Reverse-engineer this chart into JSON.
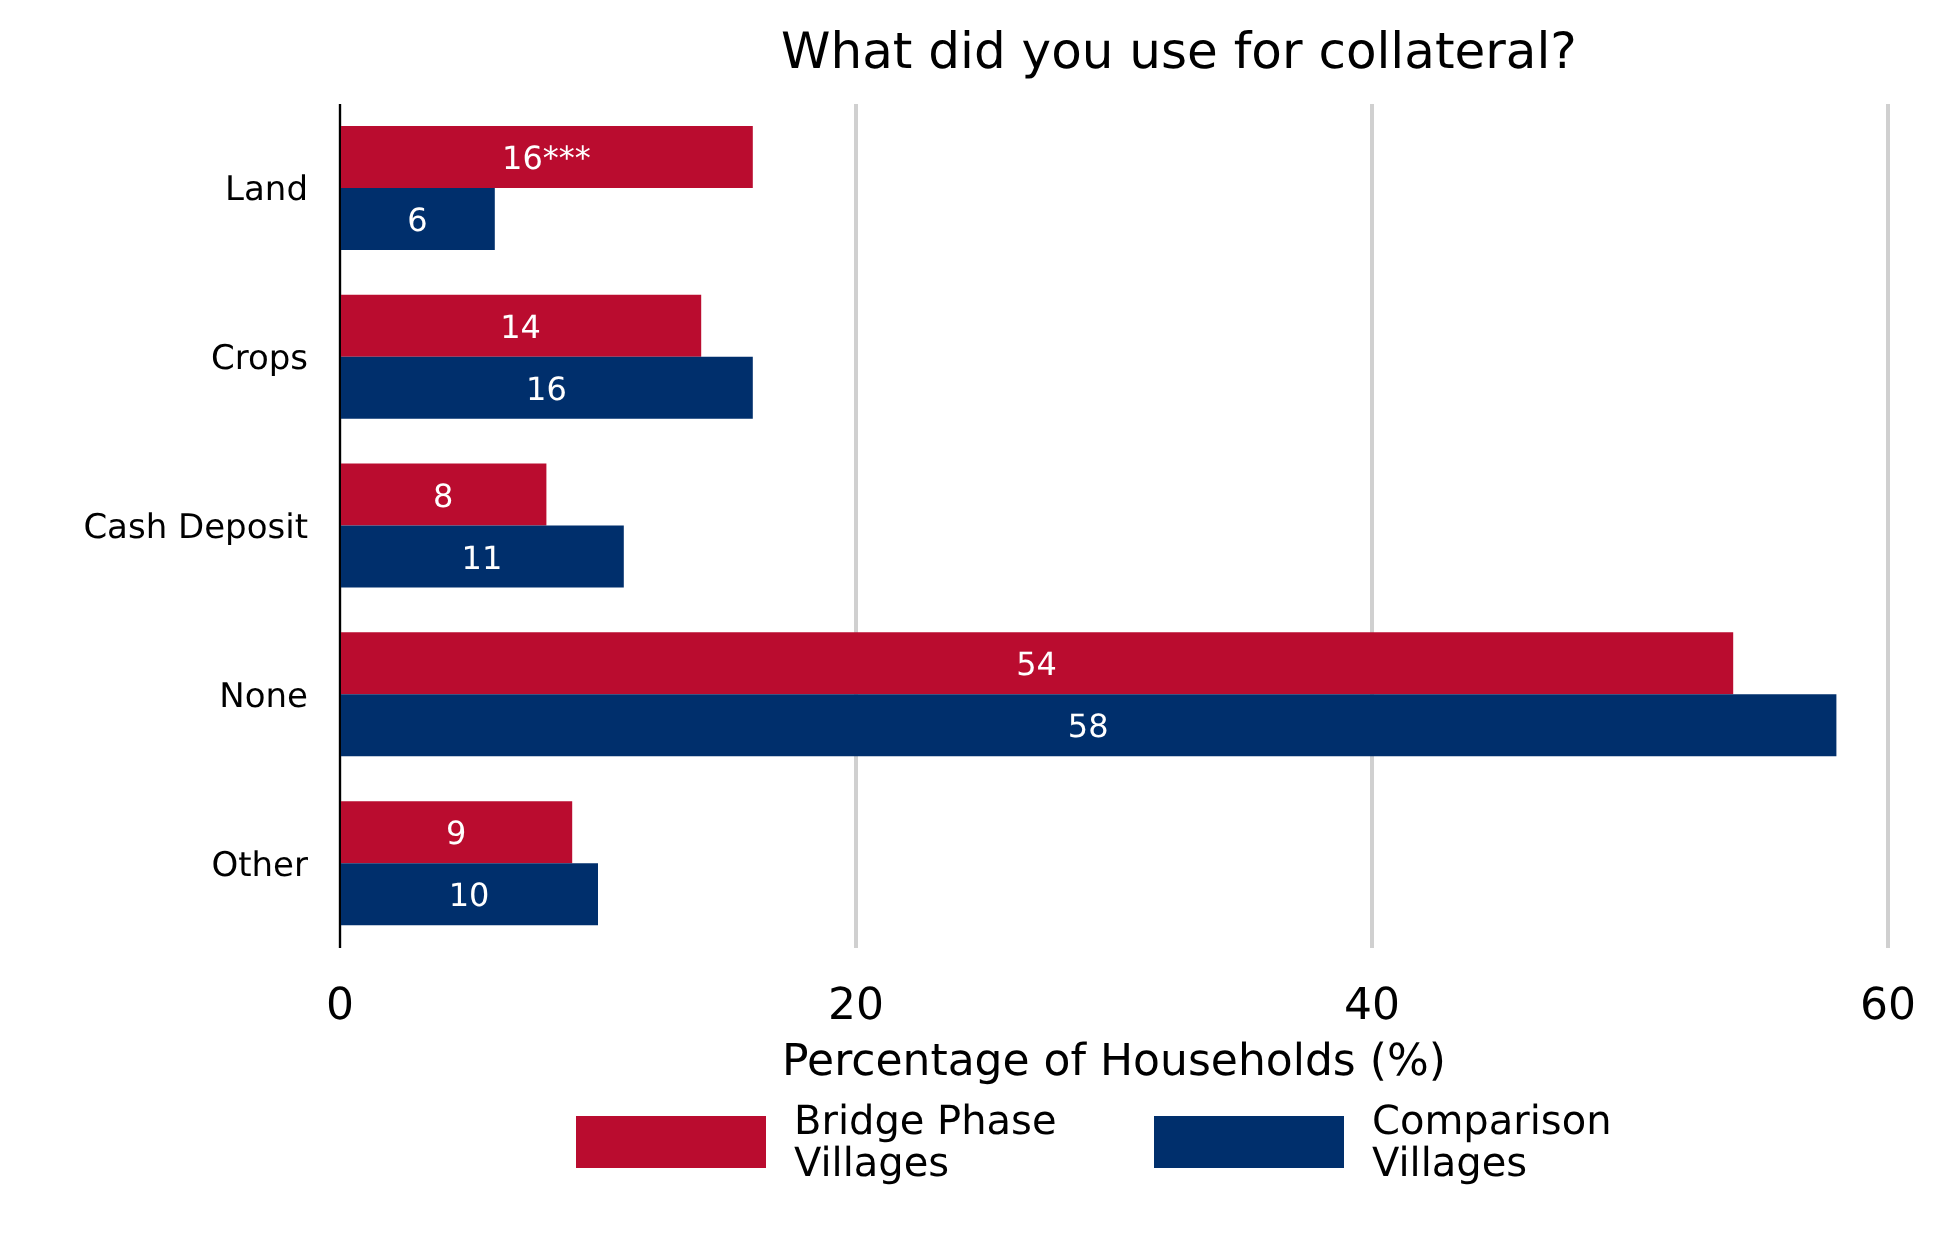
{
  "chart_data": {
    "type": "bar",
    "orientation": "horizontal",
    "title": "What did you use for collateral?",
    "xlabel": "Percentage of Households (%)",
    "categories": [
      "Land",
      "Crops",
      "Cash Deposit",
      "None",
      "Other"
    ],
    "series": [
      {
        "name": "Bridge Phase Villages",
        "color": "#ba0c2f",
        "values": [
          16,
          14,
          8,
          54,
          9
        ],
        "value_labels": [
          "16***",
          "14",
          "8",
          "54",
          "9"
        ]
      },
      {
        "name": "Comparison Villages",
        "color": "#002f6c",
        "values": [
          6,
          16,
          11,
          58,
          10
        ]
      }
    ],
    "xlim": [
      0,
      60
    ],
    "xticks": [
      0,
      20,
      40,
      60
    ],
    "grid": "x",
    "legend": "bottom",
    "data_labels": true
  }
}
